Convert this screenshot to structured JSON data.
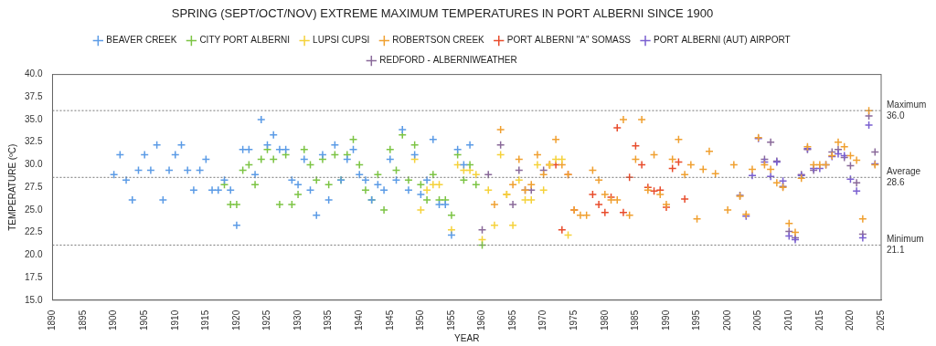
{
  "chart_data": {
    "type": "scatter",
    "title": "SPRING (SEPT/OCT/NOV) EXTREME MAXIMUM TEMPERATURES IN PORT ALBERNI SINCE 1900",
    "x_label": "YEAR",
    "y_label": "TEMPERATURE (ºC)",
    "xlim": [
      1890,
      2025
    ],
    "xticks": [
      1890,
      1895,
      1900,
      1905,
      1910,
      1915,
      1920,
      1925,
      1930,
      1935,
      1940,
      1945,
      1950,
      1955,
      1960,
      1965,
      1970,
      1975,
      1980,
      1985,
      1990,
      1995,
      2000,
      2005,
      2010,
      2015,
      2020,
      2025
    ],
    "ylim": [
      15,
      40
    ],
    "yticks": [
      {
        "value": 15,
        "label": "15.0"
      },
      {
        "value": 17.5,
        "label": "17.5"
      },
      {
        "value": 20,
        "label": "20.0"
      },
      {
        "value": 22.5,
        "label": "22.5"
      },
      {
        "value": 25,
        "label": "25.0"
      },
      {
        "value": 27.5,
        "label": "27.5"
      },
      {
        "value": 30,
        "label": "30.0"
      },
      {
        "value": 32.5,
        "label": "32.5"
      },
      {
        "value": 35,
        "label": "35.0"
      },
      {
        "value": 37.5,
        "label": "37.5"
      },
      {
        "value": 40,
        "label": "40.0"
      }
    ],
    "grid": false,
    "legend": "top",
    "marker": "plus",
    "annotations": [
      {
        "text": "Maximum",
        "y": 36.0,
        "label": "36.0"
      },
      {
        "text": "Average",
        "y": 28.6,
        "label": "28.6"
      },
      {
        "text": "Minimum",
        "y": 21.1,
        "label": "21.1"
      }
    ],
    "series": [
      {
        "name": "BEAVER CREEK",
        "color": "#5b9be6",
        "x": [
          1900,
          1901,
          1902,
          1903,
          1904,
          1905,
          1906,
          1907,
          1908,
          1909,
          1910,
          1911,
          1912,
          1913,
          1914,
          1915,
          1916,
          1917,
          1918,
          1919,
          1920,
          1921,
          1922,
          1923,
          1924,
          1925,
          1926,
          1927,
          1928,
          1929,
          1930,
          1931,
          1932,
          1933,
          1934,
          1935,
          1936,
          1937,
          1938,
          1939,
          1940,
          1941,
          1942,
          1943,
          1944,
          1945,
          1946,
          1947,
          1948,
          1949,
          1950,
          1951,
          1952,
          1953,
          1954,
          1955,
          1956,
          1957,
          1958
        ],
        "values": [
          28.9,
          31.1,
          28.3,
          26.1,
          29.4,
          31.1,
          29.4,
          32.2,
          26.1,
          29.4,
          31.1,
          32.2,
          29.4,
          27.2,
          29.4,
          30.6,
          27.2,
          27.2,
          28.3,
          27.2,
          23.3,
          31.7,
          31.7,
          28.9,
          35.0,
          32.2,
          33.3,
          31.7,
          31.7,
          28.3,
          27.8,
          30.6,
          27.2,
          24.4,
          31.1,
          26.1,
          32.2,
          28.3,
          30.6,
          31.7,
          28.9,
          28.3,
          26.1,
          27.8,
          27.2,
          30.6,
          28.3,
          33.9,
          27.2,
          31.1,
          26.7,
          28.3,
          32.8,
          25.6,
          25.6,
          22.2,
          31.7,
          30.0,
          32.2
        ]
      },
      {
        "name": "CITY PORT ALBERNI",
        "color": "#7cc444",
        "x": [
          1918,
          1919,
          1920,
          1921,
          1922,
          1923,
          1924,
          1925,
          1926,
          1927,
          1928,
          1929,
          1930,
          1931,
          1932,
          1933,
          1934,
          1935,
          1936,
          1937,
          1938,
          1939,
          1940,
          1941,
          1942,
          1943,
          1944,
          1945,
          1946,
          1947,
          1948,
          1949,
          1950,
          1951,
          1952,
          1953,
          1954,
          1955,
          1956,
          1957,
          1958,
          1959,
          1960
        ],
        "values": [
          27.8,
          25.6,
          25.6,
          29.4,
          30.0,
          27.8,
          30.6,
          31.7,
          30.6,
          25.6,
          31.1,
          25.6,
          26.7,
          31.7,
          30.0,
          28.3,
          30.6,
          27.8,
          31.1,
          28.3,
          31.1,
          32.8,
          30.0,
          27.2,
          26.1,
          28.9,
          25.0,
          31.7,
          29.4,
          33.3,
          28.3,
          32.2,
          27.8,
          26.1,
          28.9,
          26.1,
          26.1,
          24.4,
          31.1,
          28.3,
          30.0,
          27.8,
          21.1
        ]
      },
      {
        "name": "LUPSI CUPSI",
        "color": "#f5d23b",
        "x": [
          1949,
          1950,
          1951,
          1952,
          1953,
          1955,
          1956,
          1957,
          1958,
          1959,
          1960,
          1961,
          1962,
          1963,
          1964,
          1965,
          1966,
          1967,
          1968,
          1969,
          1970,
          1971,
          1972,
          1973,
          1974
        ],
        "values": [
          30.6,
          25.0,
          27.2,
          27.8,
          27.8,
          22.8,
          30.0,
          29.4,
          29.4,
          28.9,
          21.7,
          27.2,
          23.3,
          31.1,
          26.7,
          23.3,
          28.3,
          26.1,
          26.1,
          30.0,
          27.2,
          30.0,
          30.6,
          30.6,
          22.2
        ]
      },
      {
        "name": "ROBERTSON CREEK",
        "color": "#f0a030",
        "x": [
          1962,
          1963,
          1964,
          1965,
          1966,
          1967,
          1968,
          1969,
          1970,
          1971,
          1972,
          1973,
          1974,
          1975,
          1976,
          1977,
          1978,
          1979,
          1980,
          1981,
          1982,
          1983,
          1984,
          1985,
          1986,
          1987,
          1988,
          1989,
          1990,
          1991,
          1992,
          1993,
          1994,
          1995,
          1996,
          1997,
          1998,
          2000,
          2001,
          2002,
          2003,
          2004,
          2005,
          2006,
          2007,
          2008,
          2009,
          2010,
          2011,
          2012,
          2013,
          2014,
          2015,
          2016,
          2017,
          2018,
          2019,
          2020,
          2021,
          2022,
          2023,
          2024
        ],
        "values": [
          25.6,
          33.9,
          26.7,
          27.8,
          30.6,
          27.2,
          27.8,
          31.1,
          28.9,
          30.0,
          32.8,
          30.0,
          28.9,
          25.0,
          24.4,
          24.4,
          29.4,
          28.3,
          26.7,
          26.1,
          26.1,
          35.0,
          24.4,
          30.6,
          35.0,
          27.2,
          31.1,
          26.7,
          25.6,
          30.6,
          32.8,
          28.9,
          30.0,
          24.0,
          29.5,
          31.5,
          29.0,
          25.0,
          30.0,
          26.5,
          24.5,
          29.5,
          33.0,
          30.0,
          29.5,
          28.0,
          27.5,
          23.5,
          22.5,
          28.5,
          32.0,
          30.0,
          30.0,
          30.0,
          31.0,
          32.5,
          32.0,
          31.0,
          30.5,
          24.0,
          36.0,
          30.0
        ]
      },
      {
        "name": "PORT ALBERNI \"A\" SOMASS",
        "color": "#e84c2c",
        "x": [
          1971,
          1972,
          1973,
          1974,
          1975,
          1978,
          1979,
          1980,
          1981,
          1982,
          1983,
          1984,
          1985,
          1986,
          1987,
          1988,
          1989,
          1990,
          1991,
          1992,
          1993
        ],
        "values": [
          30.0,
          30.0,
          22.8,
          28.9,
          25.0,
          26.7,
          25.6,
          24.7,
          26.4,
          34.1,
          24.7,
          28.6,
          32.1,
          30.0,
          27.5,
          27.1,
          27.2,
          25.3,
          29.6,
          30.3,
          26.2
        ]
      },
      {
        "name": "PORT ALBERNI (AUT) AIRPORT",
        "color": "#7a5fd0",
        "x": [
          2003,
          2004,
          2005,
          2006,
          2007,
          2008,
          2009,
          2010,
          2011,
          2012,
          2013,
          2014,
          2015,
          2016,
          2017,
          2018,
          2019,
          2020,
          2021,
          2022,
          2023,
          2024
        ],
        "values": [
          24.3,
          28.8,
          32.9,
          30.3,
          28.7,
          30.3,
          28.2,
          22.1,
          21.7,
          28.8,
          31.8,
          29.6,
          29.6,
          30.0,
          30.9,
          31.2,
          31.0,
          28.4,
          27.1,
          21.9,
          34.4,
          30.1
        ]
      },
      {
        "name": "REDFORD - ALBERNIWEATHER",
        "color": "#8a6a9a",
        "x": [
          1960,
          1961,
          1963,
          1965,
          1966,
          1967,
          1968,
          1970,
          2002,
          2006,
          2007,
          2008,
          2009,
          2010,
          2011,
          2012,
          2013,
          2014,
          2017,
          2018,
          2019,
          2020,
          2021,
          2022,
          2023,
          2024
        ],
        "values": [
          22.8,
          28.9,
          32.2,
          25.6,
          29.4,
          27.2,
          27.2,
          29.4,
          26.6,
          30.6,
          32.5,
          30.4,
          27.6,
          22.6,
          21.9,
          28.9,
          31.7,
          29.4,
          31.4,
          31.7,
          30.8,
          29.9,
          28.0,
          22.3,
          35.4,
          31.4
        ]
      }
    ]
  }
}
